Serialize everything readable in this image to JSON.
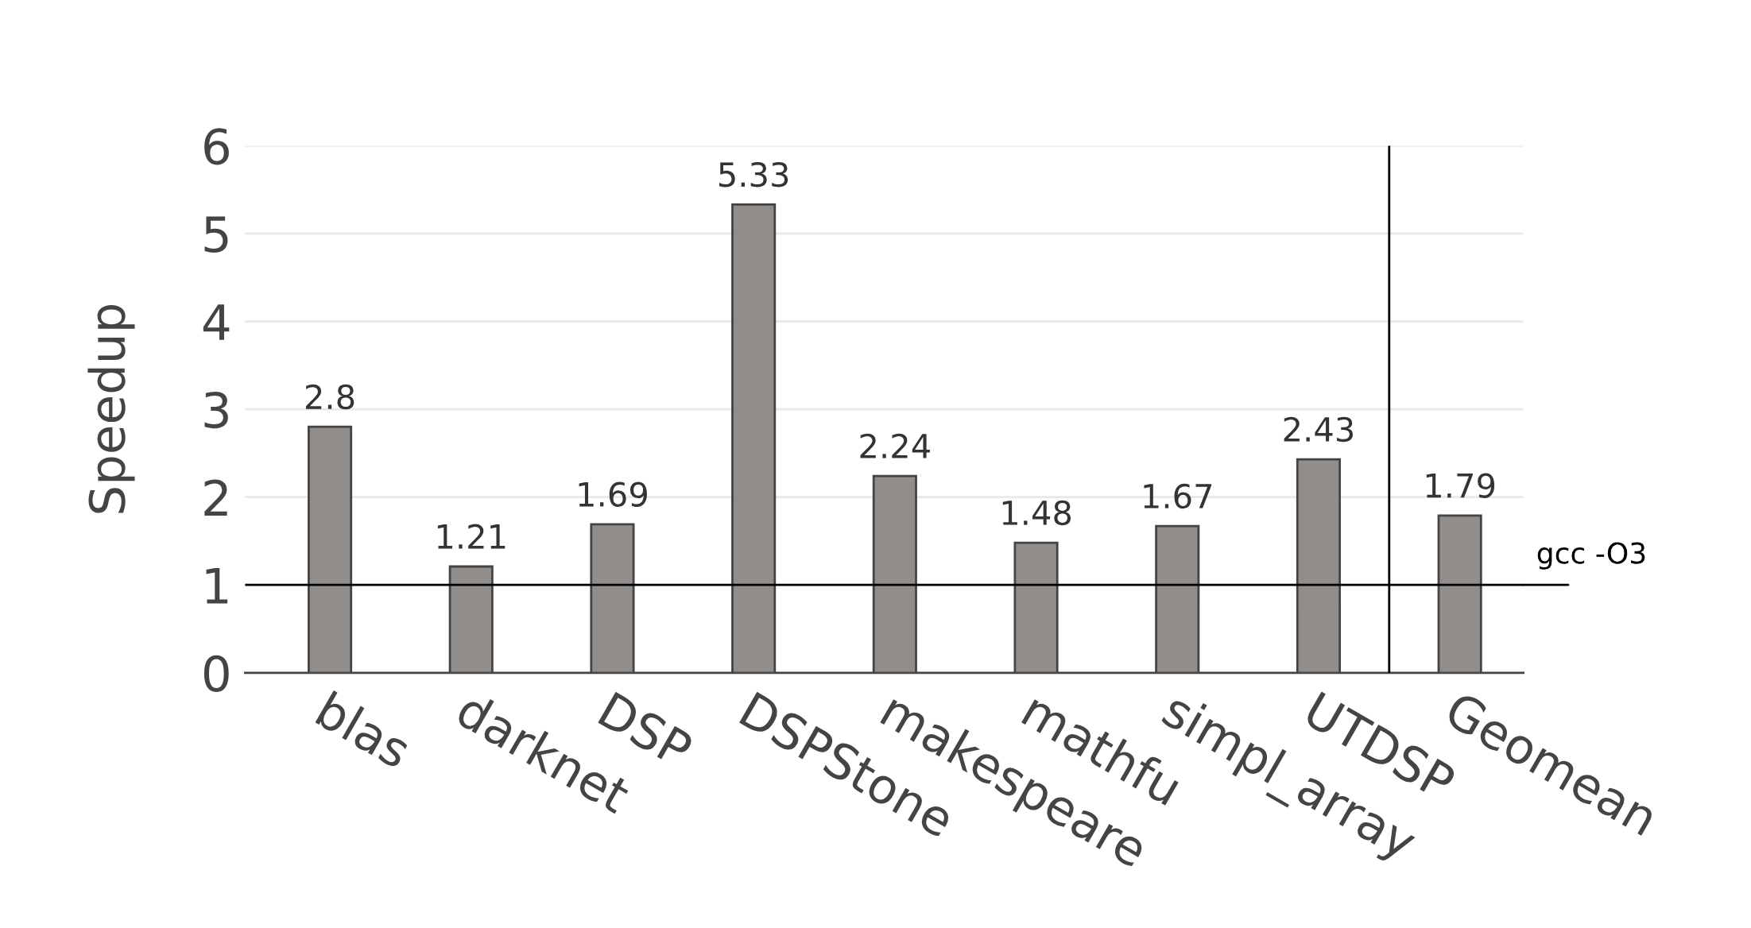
{
  "chart_data": {
    "type": "bar",
    "ylabel": "Speedup",
    "categories": [
      "blas",
      "darknet",
      "DSP",
      "DSPStone",
      "makespeare",
      "mathfu",
      "simpl_array",
      "UTDSP",
      "Geomean"
    ],
    "values": [
      2.8,
      1.21,
      1.69,
      5.33,
      2.24,
      1.48,
      1.67,
      2.43,
      1.79
    ],
    "color": "#918d8b",
    "ylim": [
      0,
      6
    ],
    "yticks": [
      0,
      1,
      2,
      3,
      4,
      5,
      6
    ],
    "grid": "y",
    "data_labels": true,
    "ref_lines": [
      {
        "axis": "y",
        "value": 1,
        "label": "gcc -O3",
        "color": "#000000"
      }
    ]
  }
}
